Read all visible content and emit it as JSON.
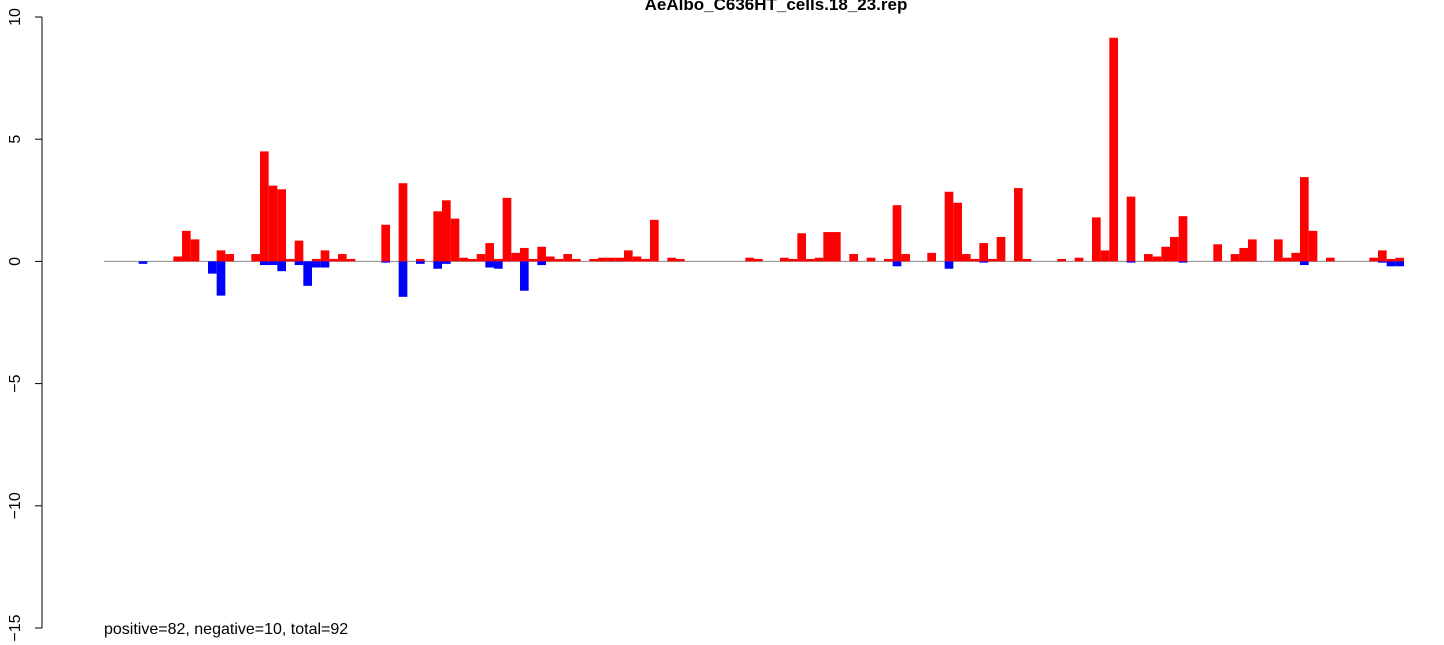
{
  "chart_data": {
    "type": "bar",
    "title": "AeAlbo_C636HT_cells.18_23.rep",
    "annotation": "positive=82, negative=10, total=92",
    "xlim": [
      0,
      150
    ],
    "ylim": [
      -15,
      10
    ],
    "yticks": [
      {
        "value": -15,
        "label": "−15"
      },
      {
        "value": -10,
        "label": "−10"
      },
      {
        "value": -5,
        "label": "−5"
      },
      0,
      5,
      10
    ],
    "series": [
      {
        "name": "positive",
        "color": "#ff0000",
        "x": [
          8,
          9,
          10,
          13,
          14,
          17,
          18,
          19,
          20,
          21,
          22,
          24,
          25,
          26,
          27,
          28,
          32,
          34,
          36,
          38,
          39,
          40,
          41,
          42,
          43,
          44,
          45,
          46,
          47,
          48,
          49,
          50,
          51,
          52,
          53,
          54,
          56,
          57,
          58,
          59,
          60,
          61,
          62,
          63,
          65,
          66,
          74,
          75,
          78,
          79,
          80,
          81,
          82,
          83,
          84,
          86,
          88,
          90,
          91,
          92,
          95,
          97,
          98,
          99,
          100,
          101,
          102,
          103,
          105,
          106,
          110,
          112,
          114,
          115,
          116,
          118,
          120,
          121,
          122,
          123,
          124,
          128,
          130,
          131,
          132,
          135,
          136,
          137,
          138,
          139,
          141,
          146,
          147,
          148,
          149
        ],
        "values": [
          0.2,
          1.25,
          0.9,
          0.45,
          0.3,
          0.3,
          4.5,
          3.1,
          2.95,
          0.1,
          0.85,
          0.1,
          0.45,
          0.1,
          0.3,
          0.1,
          1.5,
          3.2,
          0.1,
          2.05,
          2.5,
          1.75,
          0.15,
          0.1,
          0.3,
          0.75,
          0.1,
          2.6,
          0.35,
          0.55,
          0.1,
          0.6,
          0.2,
          0.1,
          0.3,
          0.1,
          0.1,
          0.15,
          0.15,
          0.15,
          0.45,
          0.2,
          0.1,
          1.7,
          0.15,
          0.1,
          0.15,
          0.1,
          0.15,
          0.1,
          1.15,
          0.1,
          0.15,
          1.2,
          1.2,
          0.3,
          0.15,
          0.1,
          2.3,
          0.3,
          0.35,
          2.85,
          2.4,
          0.3,
          0.1,
          0.75,
          0.1,
          1.0,
          3.0,
          0.1,
          0.1,
          0.15,
          1.8,
          0.45,
          9.15,
          2.65,
          0.3,
          0.2,
          0.6,
          1.0,
          1.85,
          0.7,
          0.3,
          0.55,
          0.9,
          0.9,
          0.15,
          0.35,
          3.45,
          1.25,
          0.15,
          0.15,
          0.45,
          0.1,
          0.15
        ]
      },
      {
        "name": "negative",
        "color": "#0000ff",
        "x": [
          4,
          12,
          13,
          18,
          19,
          20,
          22,
          23,
          24,
          25,
          32,
          34,
          36,
          38,
          39,
          44,
          45,
          48,
          50,
          91,
          97,
          101,
          118,
          124,
          138,
          147,
          148,
          149
        ],
        "values": [
          -0.1,
          -0.5,
          -1.4,
          -0.15,
          -0.15,
          -0.4,
          -0.15,
          -1.0,
          -0.25,
          -0.25,
          -0.05,
          -1.45,
          -0.1,
          -0.3,
          -0.1,
          -0.25,
          -0.3,
          -1.2,
          -0.15,
          -0.2,
          -0.3,
          -0.05,
          -0.05,
          -0.05,
          -0.15,
          -0.05,
          -0.2,
          -0.2
        ]
      }
    ]
  }
}
